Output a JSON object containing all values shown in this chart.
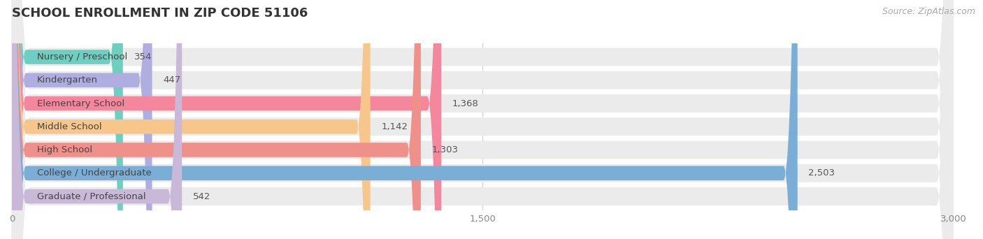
{
  "title": "SCHOOL ENROLLMENT IN ZIP CODE 51106",
  "source": "Source: ZipAtlas.com",
  "categories": [
    "Nursery / Preschool",
    "Kindergarten",
    "Elementary School",
    "Middle School",
    "High School",
    "College / Undergraduate",
    "Graduate / Professional"
  ],
  "values": [
    354,
    447,
    1368,
    1142,
    1303,
    2503,
    542
  ],
  "bar_colors": [
    "#6dcfbf",
    "#b0aee0",
    "#f4879c",
    "#f7c68a",
    "#f0908a",
    "#7aaed6",
    "#c9b8d8"
  ],
  "bar_bg_color": "#ebebeb",
  "xlim": [
    0,
    3000
  ],
  "xticks": [
    0,
    1500,
    3000
  ],
  "title_fontsize": 13,
  "label_fontsize": 9.5,
  "value_fontsize": 9.5,
  "source_fontsize": 9,
  "background_color": "#ffffff",
  "grid_color": "#d0d0d0",
  "text_color": "#555555",
  "title_color": "#333333"
}
